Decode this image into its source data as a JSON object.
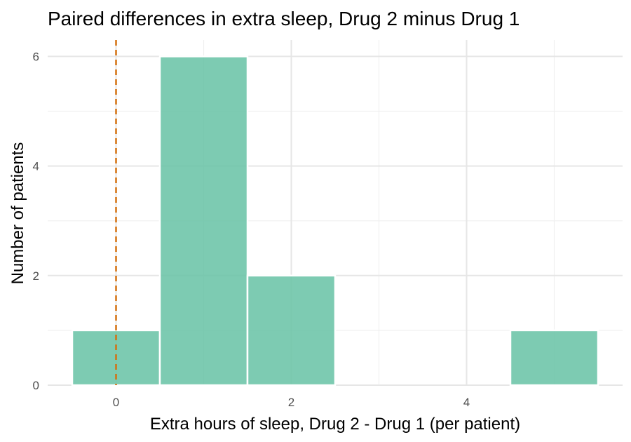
{
  "chart_data": {
    "type": "bar",
    "title": "Paired differences in extra sleep, Drug 2 minus Drug 1",
    "xlabel": "Extra hours of sleep, Drug 2 - Drug 1 (per patient)",
    "ylabel": "Number of patients",
    "bins": [
      {
        "x0": -0.5,
        "x1": 0.5,
        "count": 1
      },
      {
        "x0": 0.5,
        "x1": 1.5,
        "count": 6
      },
      {
        "x0": 1.5,
        "x1": 2.5,
        "count": 2
      },
      {
        "x0": 2.5,
        "x1": 3.5,
        "count": 0
      },
      {
        "x0": 3.5,
        "x1": 4.5,
        "count": 0
      },
      {
        "x0": 4.5,
        "x1": 5.5,
        "count": 1
      }
    ],
    "xlim": [
      -0.78,
      5.78
    ],
    "ylim": [
      0,
      6.3
    ],
    "x_ticks": [
      0,
      2,
      4
    ],
    "x_tick_labels": [
      "0",
      "2",
      "4"
    ],
    "y_ticks": [
      0,
      2,
      4,
      6
    ],
    "y_tick_labels": [
      "0",
      "2",
      "4",
      "6"
    ],
    "reference_line": {
      "x": 0,
      "style": "dashed",
      "color": "#d4700f"
    },
    "bar_color": "#66c2a5",
    "grid": true,
    "legend": "none"
  }
}
